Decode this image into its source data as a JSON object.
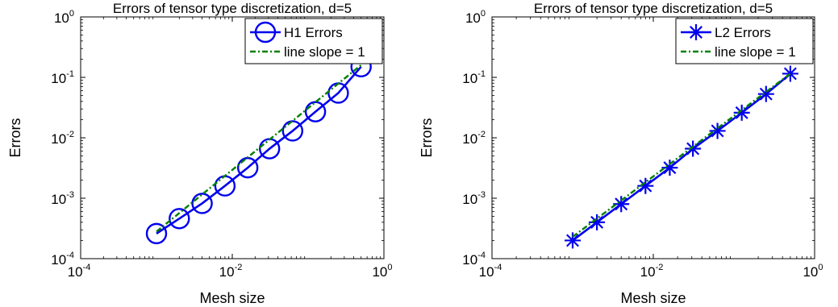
{
  "chart_data": [
    {
      "type": "line",
      "title": "Errors of tensor type discretization, d=5",
      "xlabel": "Mesh size",
      "ylabel": "Errors",
      "xscale": "log",
      "yscale": "log",
      "xlim": [
        0.0001,
        1
      ],
      "ylim": [
        0.0001,
        1
      ],
      "xticks": [
        {
          "base": "10",
          "exp": "-4",
          "value": 0.0001
        },
        {
          "base": "10",
          "exp": "-2",
          "value": 0.01
        },
        {
          "base": "10",
          "exp": "0",
          "value": 1
        }
      ],
      "yticks": [
        {
          "base": "10",
          "exp": "-4",
          "value": 0.0001
        },
        {
          "base": "10",
          "exp": "-3",
          "value": 0.001
        },
        {
          "base": "10",
          "exp": "-2",
          "value": 0.01
        },
        {
          "base": "10",
          "exp": "-1",
          "value": 0.1
        },
        {
          "base": "10",
          "exp": "0",
          "value": 1
        }
      ],
      "grid": false,
      "legend_position": "top-right",
      "series": [
        {
          "name": "H1 Errors",
          "color": "#0000ee",
          "marker": "circle",
          "line_style": "solid",
          "x": [
            0.001,
            0.002,
            0.004,
            0.008,
            0.016,
            0.031,
            0.0625,
            0.125,
            0.25,
            0.5
          ],
          "y": [
            0.00026,
            0.00046,
            0.00082,
            0.0016,
            0.0032,
            0.0066,
            0.013,
            0.027,
            0.055,
            0.15
          ]
        },
        {
          "name": "line slope = 1",
          "color": "#008000",
          "marker": "none",
          "line_style": "dash-dot",
          "x": [
            0.001,
            0.5
          ],
          "y": [
            0.00028,
            0.16
          ]
        }
      ]
    },
    {
      "type": "line",
      "title": "Errors of tensor type discretization, d=5",
      "xlabel": "Mesh size",
      "ylabel": "Errors",
      "xscale": "log",
      "yscale": "log",
      "xlim": [
        0.0001,
        1
      ],
      "ylim": [
        0.0001,
        1
      ],
      "xticks": [
        {
          "base": "10",
          "exp": "-4",
          "value": 0.0001
        },
        {
          "base": "10",
          "exp": "-2",
          "value": 0.01
        },
        {
          "base": "10",
          "exp": "0",
          "value": 1
        }
      ],
      "yticks": [
        {
          "base": "10",
          "exp": "-4",
          "value": 0.0001
        },
        {
          "base": "10",
          "exp": "-3",
          "value": 0.001
        },
        {
          "base": "10",
          "exp": "-2",
          "value": 0.01
        },
        {
          "base": "10",
          "exp": "-1",
          "value": 0.1
        },
        {
          "base": "10",
          "exp": "0",
          "value": 1
        }
      ],
      "grid": false,
      "legend_position": "top-right",
      "series": [
        {
          "name": "L2 Errors",
          "color": "#0000ee",
          "marker": "asterisk",
          "line_style": "solid",
          "x": [
            0.001,
            0.002,
            0.004,
            0.008,
            0.016,
            0.031,
            0.0625,
            0.125,
            0.25,
            0.5
          ],
          "y": [
            0.0002,
            0.0004,
            0.0008,
            0.0016,
            0.0032,
            0.0066,
            0.013,
            0.026,
            0.053,
            0.115
          ]
        },
        {
          "name": "line slope = 1",
          "color": "#008000",
          "marker": "none",
          "line_style": "dash-dot",
          "x": [
            0.001,
            0.5
          ],
          "y": [
            0.00023,
            0.115
          ]
        }
      ]
    }
  ]
}
